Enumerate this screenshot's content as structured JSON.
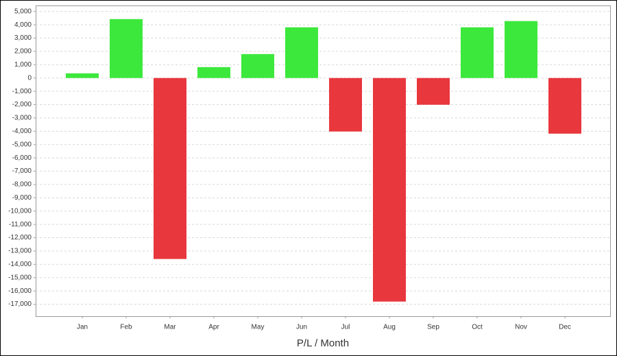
{
  "chart_data": {
    "type": "bar",
    "x_label": "P/L / Month",
    "categories": [
      "Jan",
      "Feb",
      "Mar",
      "Apr",
      "May",
      "Jun",
      "Jul",
      "Aug",
      "Sep",
      "Oct",
      "Nov",
      "Dec"
    ],
    "values": [
      350,
      4430,
      -13600,
      820,
      1800,
      3810,
      -4020,
      -16800,
      -2010,
      3810,
      4280,
      -4180
    ],
    "positive_color": "#3de83d",
    "negative_color": "#e8373d",
    "ylim": [
      -17900,
      5450
    ],
    "yticks": [
      {
        "value": 5000,
        "label": "5,000"
      },
      {
        "value": 4000,
        "label": "4,000"
      },
      {
        "value": 3000,
        "label": "3,000"
      },
      {
        "value": 2000,
        "label": "2,000"
      },
      {
        "value": 1000,
        "label": "1,000"
      },
      0,
      {
        "value": -1000,
        "label": "-1,000"
      },
      {
        "value": -2000,
        "label": "-2,000"
      },
      {
        "value": -3000,
        "label": "-3,000"
      },
      {
        "value": -4000,
        "label": "-4,000"
      },
      {
        "value": -5000,
        "label": "-5,000"
      },
      {
        "value": -6000,
        "label": "-6,000"
      },
      {
        "value": -7000,
        "label": "-7,000"
      },
      {
        "value": -8000,
        "label": "-8,000"
      },
      {
        "value": -9000,
        "label": "-9,000"
      },
      {
        "value": -10000,
        "label": "-10,000"
      },
      {
        "value": -11000,
        "label": "-11,000"
      },
      {
        "value": -12000,
        "label": "-12,000"
      },
      {
        "value": -13000,
        "label": "-13,000"
      },
      {
        "value": -14000,
        "label": "-14,000"
      },
      {
        "value": -15000,
        "label": "-15,000"
      },
      {
        "value": -16000,
        "label": "-16,000"
      },
      {
        "value": -17000,
        "label": "-17,000"
      }
    ],
    "grid": true
  }
}
